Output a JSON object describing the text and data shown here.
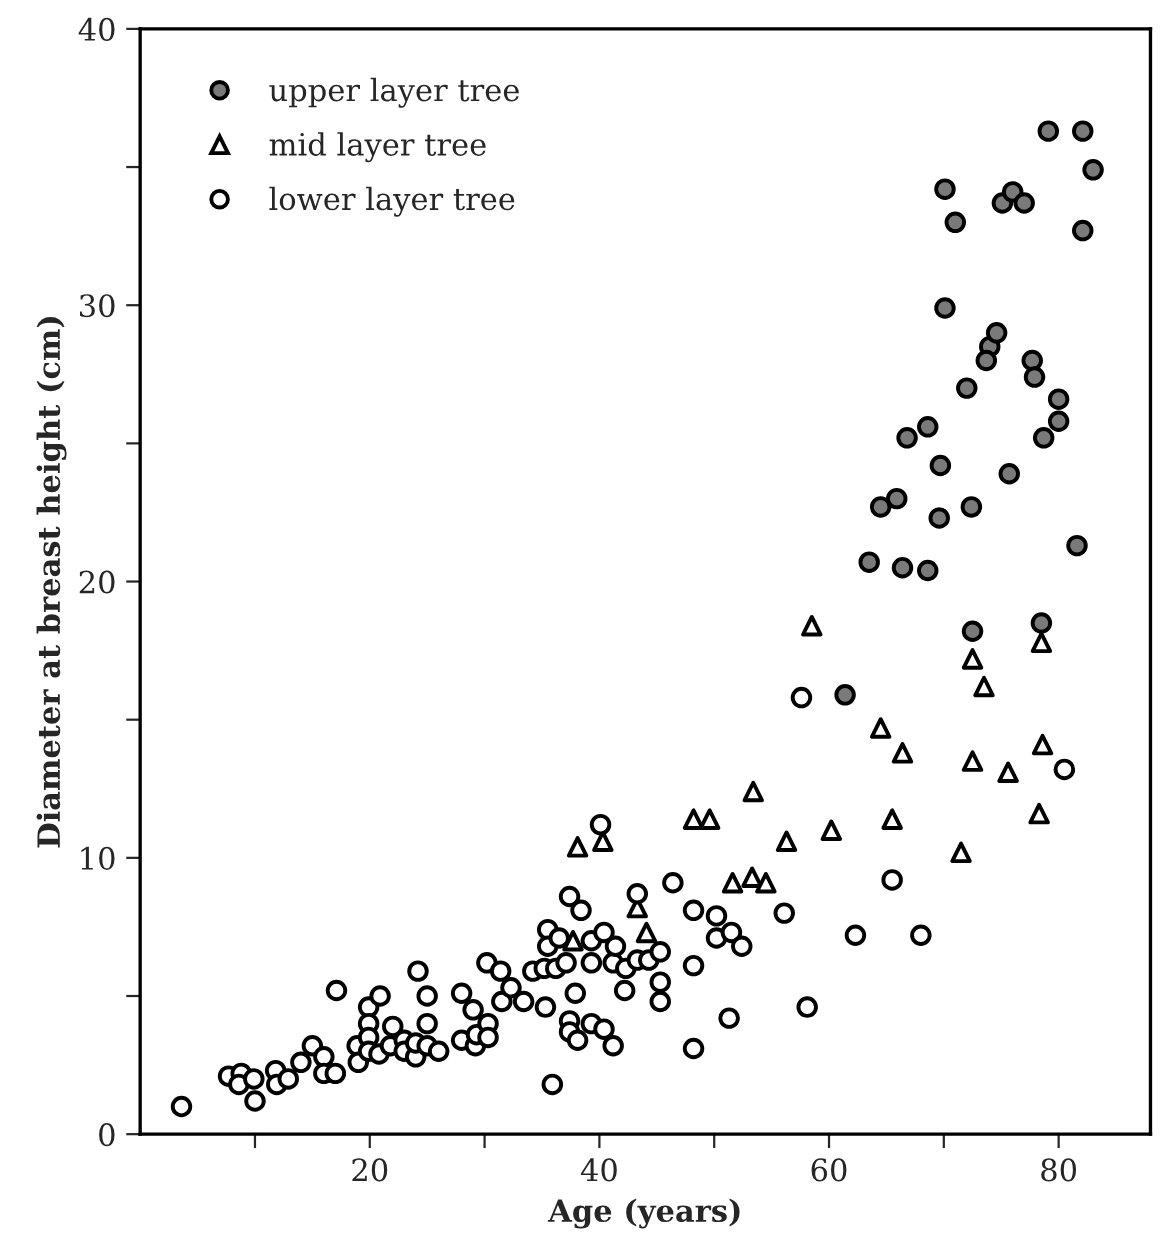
{
  "chart_data": {
    "type": "scatter",
    "xlabel": "Age (years)",
    "ylabel": "Diameter at breast height (cm)",
    "xlim": [
      0,
      88
    ],
    "ylim": [
      0,
      40
    ],
    "xticks": [
      {
        "value": 10,
        "label": null
      },
      20,
      {
        "value": 30,
        "label": null
      },
      40,
      {
        "value": 50,
        "label": null
      },
      60,
      {
        "value": 70,
        "label": null
      },
      80
    ],
    "yticks": [
      0,
      {
        "value": 5,
        "label": null
      },
      10,
      {
        "value": 15,
        "label": null
      },
      20,
      {
        "value": 25,
        "label": null
      },
      30,
      {
        "value": 35,
        "label": null
      },
      40
    ],
    "grid": false,
    "legend": "top left",
    "series": [
      {
        "name": "upper layer tree",
        "color": "#7a7a7a",
        "marker": "circle",
        "x": [
          79.1,
          82.1,
          83.0,
          70.1,
          71.0,
          75.1,
          76.0,
          77.0,
          82.1,
          70.1,
          74.0,
          74.6,
          73.7,
          77.7,
          77.9,
          72.0,
          80.0,
          80.0,
          78.7,
          66.8,
          68.6,
          69.7,
          75.7,
          64.5,
          65.9,
          69.6,
          72.4,
          81.6,
          63.5,
          66.4,
          68.6,
          61.4,
          72.5,
          78.5
        ],
        "values": [
          36.3,
          36.3,
          34.9,
          34.2,
          33.0,
          33.7,
          34.1,
          33.7,
          32.7,
          29.9,
          28.5,
          29.0,
          28.0,
          28.0,
          27.4,
          27.0,
          26.6,
          25.8,
          25.2,
          25.2,
          25.6,
          24.2,
          23.9,
          22.7,
          23.0,
          22.3,
          22.7,
          21.3,
          20.7,
          20.5,
          20.4,
          15.9,
          18.2,
          18.5
        ]
      },
      {
        "name": "mid layer tree",
        "color": "#ffffff",
        "marker": "triangle",
        "x": [
          38.1,
          40.3,
          37.7,
          43.3,
          44.1,
          64.5,
          66.4,
          72.5,
          75.6,
          78.6,
          78.3,
          71.5,
          65.5,
          60.2,
          56.3,
          53.4,
          48.2,
          49.6,
          51.6,
          53.3,
          54.5,
          58.5,
          72.5,
          73.5,
          78.5
        ],
        "values": [
          10.4,
          10.6,
          7.0,
          8.2,
          7.3,
          14.7,
          13.8,
          13.5,
          13.1,
          14.1,
          11.6,
          10.2,
          11.4,
          11.0,
          10.6,
          12.4,
          11.4,
          11.4,
          9.1,
          9.3,
          9.1,
          18.4,
          17.2,
          16.2,
          17.8
        ]
      },
      {
        "name": "lower layer tree",
        "color": "#ffffff",
        "marker": "circle",
        "x": [
          3.6,
          7.7,
          8.8,
          8.6,
          9.9,
          10.0,
          11.8,
          11.9,
          12.9,
          14.0,
          15.0,
          16.0,
          16.0,
          17.0,
          17.1,
          18.9,
          19.0,
          19.9,
          19.9,
          19.9,
          19.9,
          20.9,
          20.8,
          21.8,
          22.0,
          23.0,
          23.0,
          24.0,
          24.0,
          24.2,
          25.0,
          25.0,
          25.0,
          26.0,
          28.0,
          28.0,
          29.0,
          29.2,
          29.3,
          30.2,
          30.3,
          30.3,
          31.4,
          31.5,
          32.3,
          33.4,
          34.2,
          35.2,
          35.3,
          35.5,
          35.5,
          35.9,
          36.2,
          36.5,
          37.1,
          37.4,
          37.4,
          37.4,
          37.9,
          38.1,
          38.4,
          39.3,
          39.3,
          39.3,
          40.1,
          40.4,
          40.4,
          41.2,
          41.2,
          42.2,
          42.3,
          41.4,
          43.3,
          43.3,
          44.3,
          45.3,
          45.3,
          45.3,
          46.4,
          48.2,
          48.2,
          48.2,
          50.2,
          50.2,
          51.3,
          51.5,
          52.4,
          56.1,
          58.1,
          62.3,
          65.5,
          68.0,
          80.5,
          57.6
        ],
        "values": [
          1.0,
          2.1,
          2.2,
          1.8,
          2.0,
          1.2,
          2.3,
          1.8,
          2.0,
          2.6,
          3.2,
          2.8,
          2.2,
          2.2,
          5.2,
          3.2,
          2.6,
          4.6,
          4.0,
          3.5,
          3.0,
          5.0,
          2.9,
          3.2,
          3.9,
          3.4,
          3.0,
          2.8,
          3.3,
          5.9,
          5.0,
          4.0,
          3.2,
          3.0,
          5.1,
          3.4,
          4.5,
          3.2,
          3.6,
          6.2,
          4.0,
          3.5,
          5.9,
          4.8,
          5.3,
          4.8,
          5.9,
          6.0,
          4.6,
          7.4,
          6.8,
          1.8,
          6.0,
          7.1,
          6.2,
          8.6,
          4.1,
          3.7,
          5.1,
          3.4,
          8.1,
          7.0,
          6.2,
          4.0,
          11.2,
          3.8,
          7.3,
          3.2,
          6.2,
          5.2,
          6.0,
          6.8,
          8.7,
          6.3,
          6.3,
          6.6,
          5.5,
          4.8,
          9.1,
          8.1,
          6.1,
          3.1,
          7.9,
          7.1,
          4.2,
          7.3,
          6.8,
          8.0,
          4.6,
          7.2,
          9.2,
          7.2,
          13.2,
          15.8
        ]
      }
    ]
  }
}
